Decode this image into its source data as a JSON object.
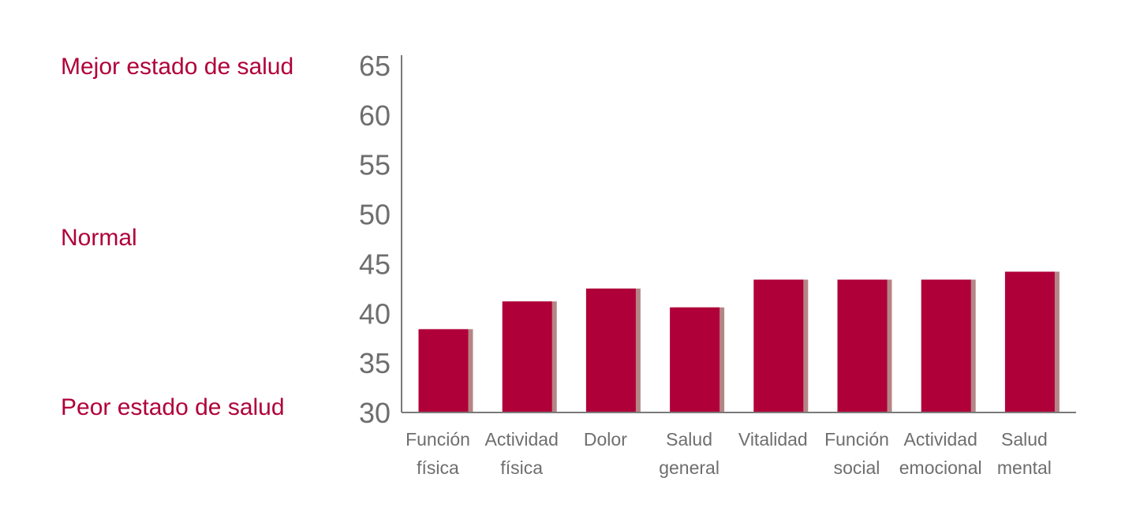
{
  "chart_data": {
    "type": "bar",
    "title": "",
    "xlabel": "",
    "ylabel": "",
    "ylim": [
      30,
      65
    ],
    "yticks": [
      30,
      35,
      40,
      45,
      50,
      55,
      60,
      65
    ],
    "grid": false,
    "categories": [
      [
        "Función",
        "física"
      ],
      [
        "Actividad",
        "física"
      ],
      [
        "Dolor"
      ],
      [
        "Salud",
        "general"
      ],
      [
        "Vitalidad"
      ],
      [
        "Función",
        "social"
      ],
      [
        "Actividad",
        "emocional"
      ],
      [
        "Salud",
        "mental"
      ]
    ],
    "values": [
      38.4,
      41.2,
      42.5,
      40.6,
      43.4,
      43.4,
      43.4,
      44.2
    ],
    "colors": {
      "bar": "#b0003a",
      "bar_shadow": "#b58585",
      "axis": "#7a7a7a",
      "side_label": "#b0003a",
      "tick": "#6e6e6e"
    },
    "side_labels": {
      "top": "Mejor estado de salud",
      "middle": "Normal",
      "bottom": "Peor estado de salud"
    }
  }
}
